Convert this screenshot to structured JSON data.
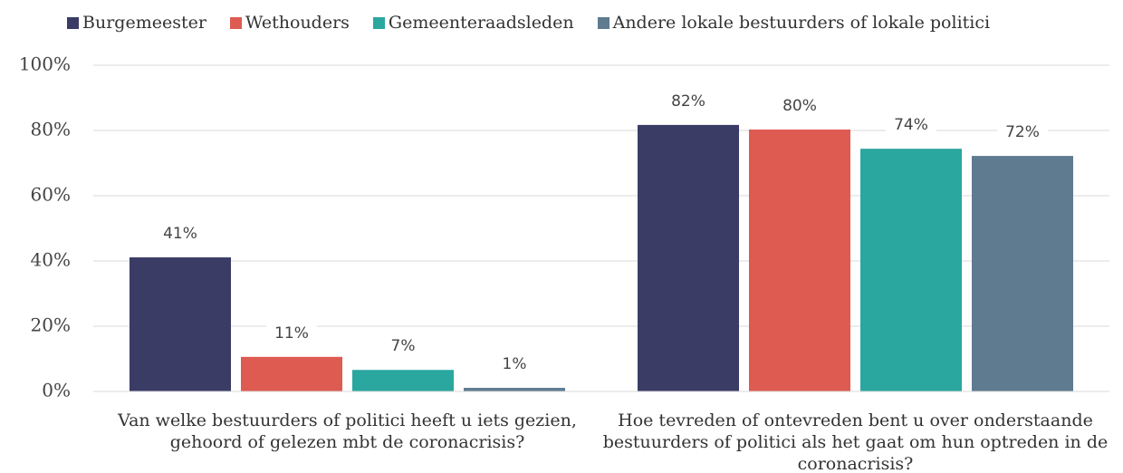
{
  "chart_data": {
    "type": "bar",
    "categories": [
      "Van welke bestuurders of politici heeft u iets gezien, gehoord of gelezen mbt de coronacrisis?",
      "Hoe tevreden of ontevreden bent u over onderstaande bestuurders of politici als het gaat om hun optreden in de coronacrisis?"
    ],
    "series": [
      {
        "name": "Burgemeester",
        "color": "#3a3c66",
        "values": [
          41.1,
          81.7
        ],
        "value_labels": [
          "41%",
          "82%"
        ]
      },
      {
        "name": "Wethouders",
        "color": "#de5b51",
        "values": [
          10.6,
          80.3
        ],
        "value_labels": [
          "11%",
          "80%"
        ]
      },
      {
        "name": "Gemeenteraadsleden",
        "color": "#2aa79f",
        "values": [
          6.6,
          74.4
        ],
        "value_labels": [
          "7%",
          "74%"
        ]
      },
      {
        "name": "Andere lokale bestuurders of lokale politici",
        "color": "#5f7b90",
        "values": [
          1.1,
          72.2
        ],
        "value_labels": [
          "1%",
          "72%"
        ]
      }
    ],
    "ylim": [
      0,
      100
    ],
    "yticks": [
      {
        "value": 0,
        "label": "0%"
      },
      {
        "value": 20,
        "label": "20%"
      },
      {
        "value": 40,
        "label": "40%"
      },
      {
        "value": 60,
        "label": "60%"
      },
      {
        "value": 80,
        "label": "80%"
      },
      {
        "value": 100,
        "label": "100%"
      }
    ],
    "grid": true,
    "legend": "top"
  }
}
